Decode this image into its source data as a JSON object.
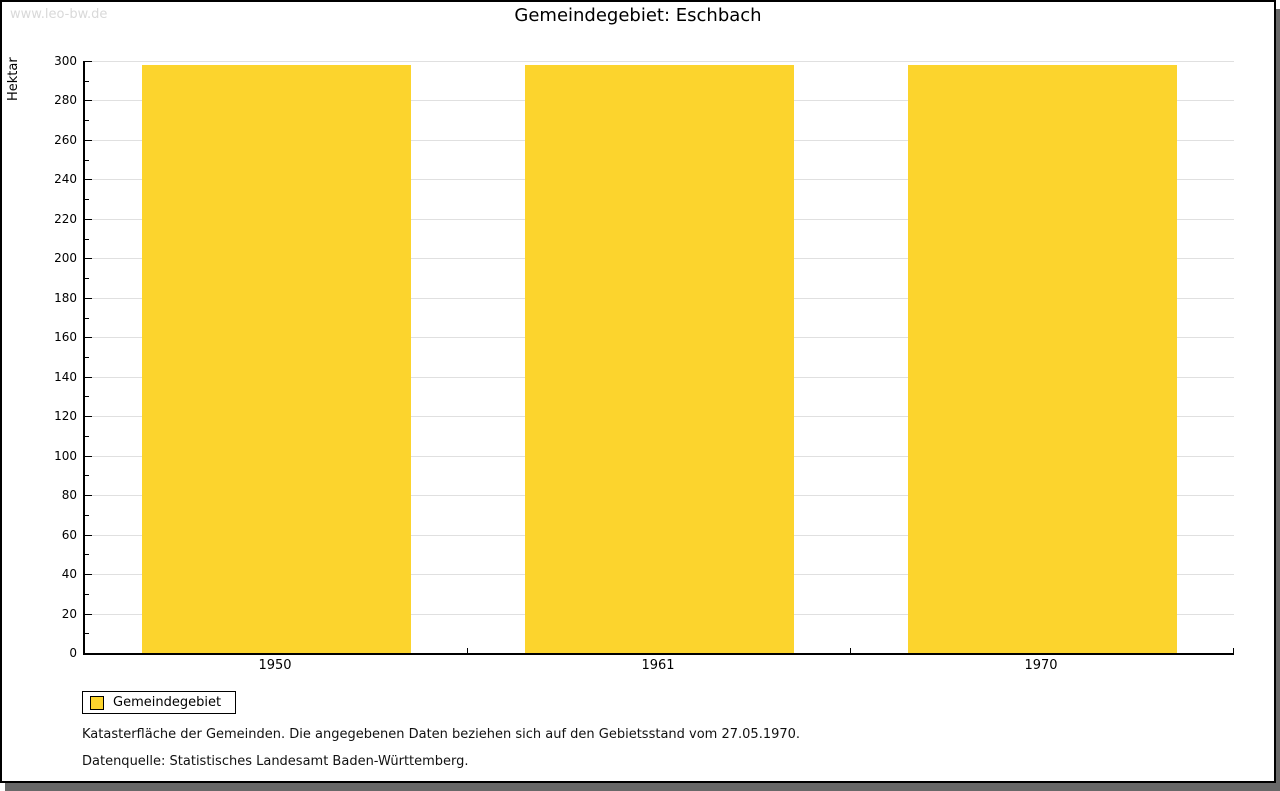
{
  "window": {
    "watermark": "www.leo-bw.de"
  },
  "chart_data": {
    "type": "bar",
    "title": "Gemeindegebiet: Eschbach",
    "xlabel": "",
    "ylabel": "Hektar",
    "categories": [
      "1950",
      "1961",
      "1970"
    ],
    "series": [
      {
        "name": "Gemeindegebiet",
        "values": [
          298,
          298,
          298
        ],
        "color": "#fcd42d"
      }
    ],
    "ylim": [
      0,
      300
    ],
    "ytick_major_step": 20,
    "ytick_minor_step": 10,
    "grid": true,
    "gridline_color": "#e0e0e0",
    "legend_position": "bottom-left"
  },
  "legend": {
    "items": [
      {
        "label": "Gemeindegebiet",
        "color": "#fcd42d"
      }
    ]
  },
  "notes": {
    "line1": "Katasterfläche der Gemeinden. Die angegebenen Daten beziehen sich auf den Gebietsstand vom 27.05.1970.",
    "line2": "Datenquelle: Statistisches Landesamt Baden-Württemberg."
  }
}
